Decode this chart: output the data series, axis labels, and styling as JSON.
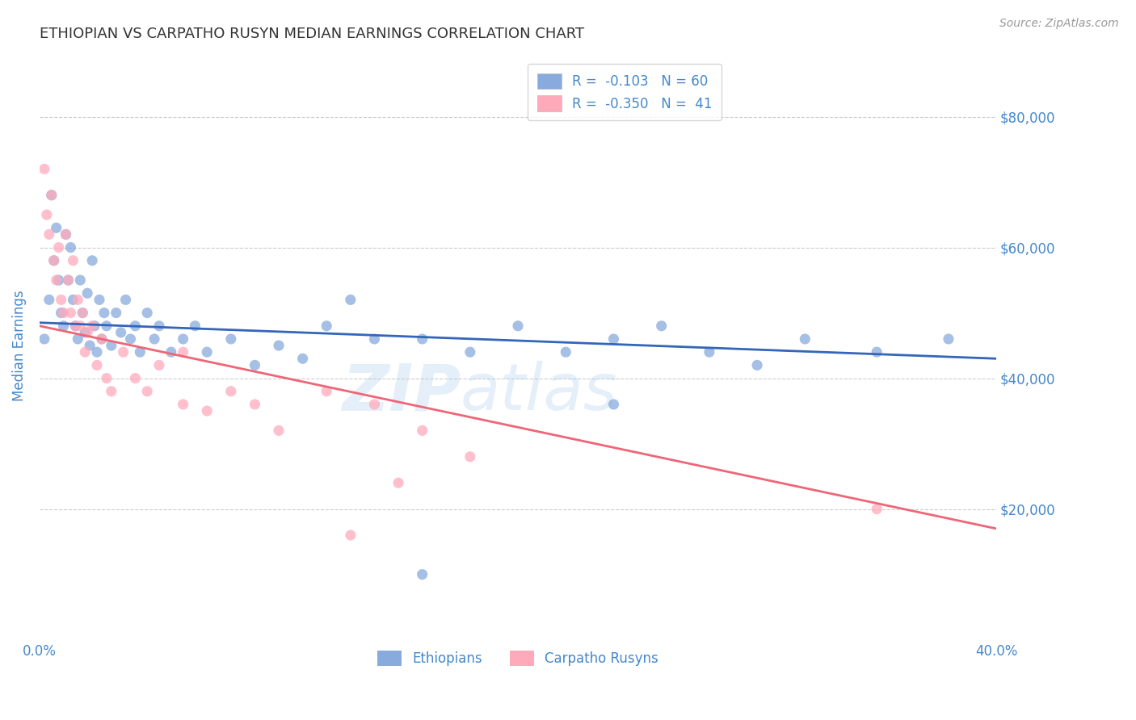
{
  "title": "ETHIOPIAN VS CARPATHO RUSYN MEDIAN EARNINGS CORRELATION CHART",
  "source": "Source: ZipAtlas.com",
  "ylabel": "Median Earnings",
  "xlim": [
    0.0,
    0.4
  ],
  "ylim": [
    0,
    90000
  ],
  "yticks": [
    20000,
    40000,
    60000,
    80000
  ],
  "ytick_labels": [
    "$20,000",
    "$40,000",
    "$60,000",
    "$80,000"
  ],
  "xticks": [
    0.0,
    0.05,
    0.1,
    0.15,
    0.2,
    0.25,
    0.3,
    0.35,
    0.4
  ],
  "blue_color": "#88AADD",
  "pink_color": "#FFAABB",
  "blue_line_color": "#3366BB",
  "pink_line_color": "#EE6677",
  "legend_blue_label": "R =  -0.103   N = 60",
  "legend_pink_label": "R =  -0.350   N =  41",
  "blue_line_x0": 0.0,
  "blue_line_y0": 48500,
  "blue_line_x1": 0.4,
  "blue_line_y1": 43000,
  "pink_line_x0": 0.0,
  "pink_line_y0": 48000,
  "pink_line_x1": 0.4,
  "pink_line_y1": 17000,
  "blue_x": [
    0.002,
    0.004,
    0.005,
    0.006,
    0.007,
    0.008,
    0.009,
    0.01,
    0.011,
    0.012,
    0.013,
    0.014,
    0.015,
    0.016,
    0.017,
    0.018,
    0.019,
    0.02,
    0.021,
    0.022,
    0.023,
    0.024,
    0.025,
    0.026,
    0.027,
    0.028,
    0.03,
    0.032,
    0.034,
    0.036,
    0.038,
    0.04,
    0.042,
    0.045,
    0.048,
    0.05,
    0.055,
    0.06,
    0.065,
    0.07,
    0.08,
    0.09,
    0.1,
    0.11,
    0.12,
    0.13,
    0.14,
    0.16,
    0.18,
    0.2,
    0.22,
    0.24,
    0.26,
    0.28,
    0.3,
    0.32,
    0.35,
    0.38,
    0.24,
    0.16
  ],
  "blue_y": [
    46000,
    52000,
    68000,
    58000,
    63000,
    55000,
    50000,
    48000,
    62000,
    55000,
    60000,
    52000,
    48000,
    46000,
    55000,
    50000,
    47000,
    53000,
    45000,
    58000,
    48000,
    44000,
    52000,
    46000,
    50000,
    48000,
    45000,
    50000,
    47000,
    52000,
    46000,
    48000,
    44000,
    50000,
    46000,
    48000,
    44000,
    46000,
    48000,
    44000,
    46000,
    42000,
    45000,
    43000,
    48000,
    52000,
    46000,
    46000,
    44000,
    48000,
    44000,
    46000,
    48000,
    44000,
    42000,
    46000,
    44000,
    46000,
    36000,
    10000
  ],
  "pink_x": [
    0.002,
    0.003,
    0.004,
    0.005,
    0.006,
    0.007,
    0.008,
    0.009,
    0.01,
    0.011,
    0.012,
    0.013,
    0.014,
    0.015,
    0.016,
    0.017,
    0.018,
    0.019,
    0.02,
    0.022,
    0.024,
    0.026,
    0.028,
    0.03,
    0.035,
    0.04,
    0.045,
    0.05,
    0.06,
    0.07,
    0.08,
    0.09,
    0.1,
    0.12,
    0.14,
    0.16,
    0.18,
    0.13,
    0.06,
    0.35,
    0.15
  ],
  "pink_y": [
    72000,
    65000,
    62000,
    68000,
    58000,
    55000,
    60000,
    52000,
    50000,
    62000,
    55000,
    50000,
    58000,
    48000,
    52000,
    48000,
    50000,
    44000,
    47000,
    48000,
    42000,
    46000,
    40000,
    38000,
    44000,
    40000,
    38000,
    42000,
    36000,
    35000,
    38000,
    36000,
    32000,
    38000,
    36000,
    32000,
    28000,
    16000,
    44000,
    20000,
    24000
  ],
  "watermark_line1": "ZIP",
  "watermark_line2": "atlas",
  "background_color": "#FFFFFF",
  "grid_color": "#CCCCCC",
  "axis_color": "#4488CC",
  "title_color": "#333333"
}
